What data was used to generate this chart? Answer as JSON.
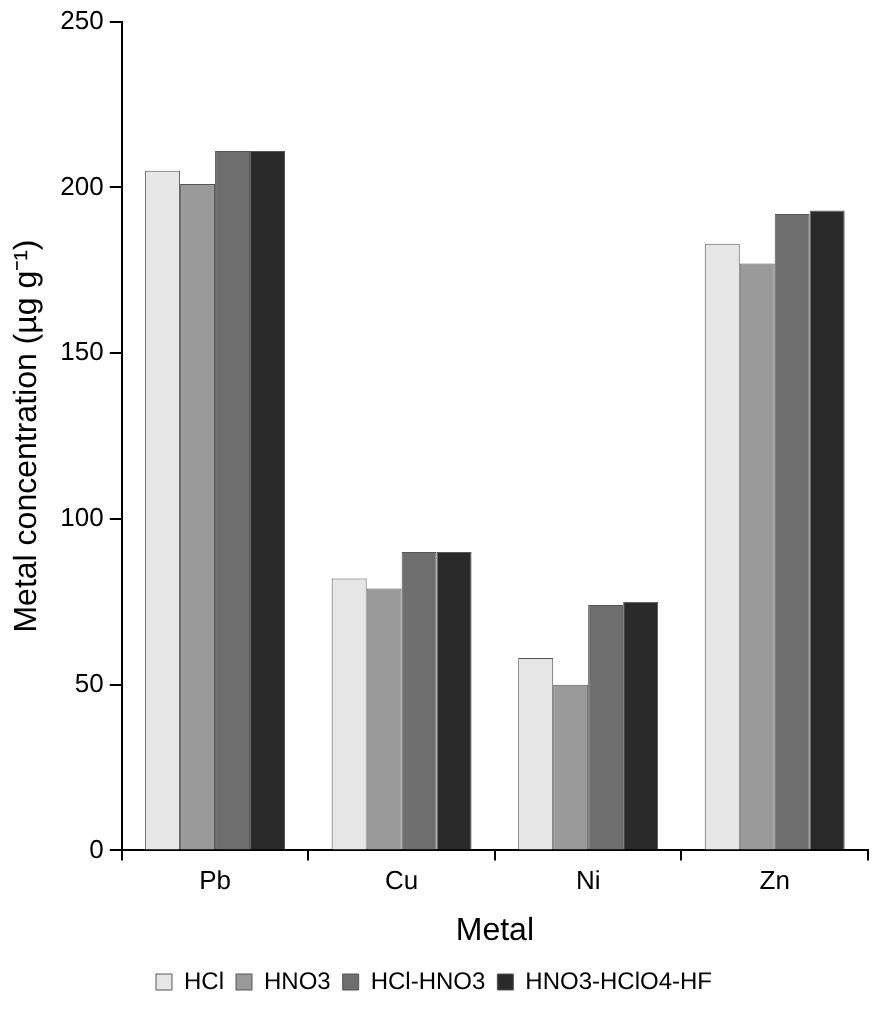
{
  "chart_data": {
    "type": "bar",
    "xlabel": "Metal",
    "ylabel": "Metal concentration (µg g⁻¹)",
    "categories": [
      "Pb",
      "Cu",
      "Ni",
      "Zn"
    ],
    "series": [
      {
        "name": "HCl",
        "color": "#e6e6e6",
        "values": [
          205,
          82,
          58,
          183
        ]
      },
      {
        "name": "HNO3",
        "color": "#9a9a9a",
        "values": [
          201,
          79,
          50,
          177
        ]
      },
      {
        "name": "HCl-HNO3",
        "color": "#6e6e6e",
        "values": [
          211,
          90,
          74,
          192
        ]
      },
      {
        "name": "HNO3-HClO4-HF",
        "color": "#2a2a2a",
        "values": [
          211,
          90,
          75,
          193
        ]
      }
    ],
    "ylim": [
      0,
      250
    ],
    "yticks": [
      0,
      50,
      100,
      150,
      200,
      250
    ],
    "grid": false,
    "legend": "bottom"
  }
}
